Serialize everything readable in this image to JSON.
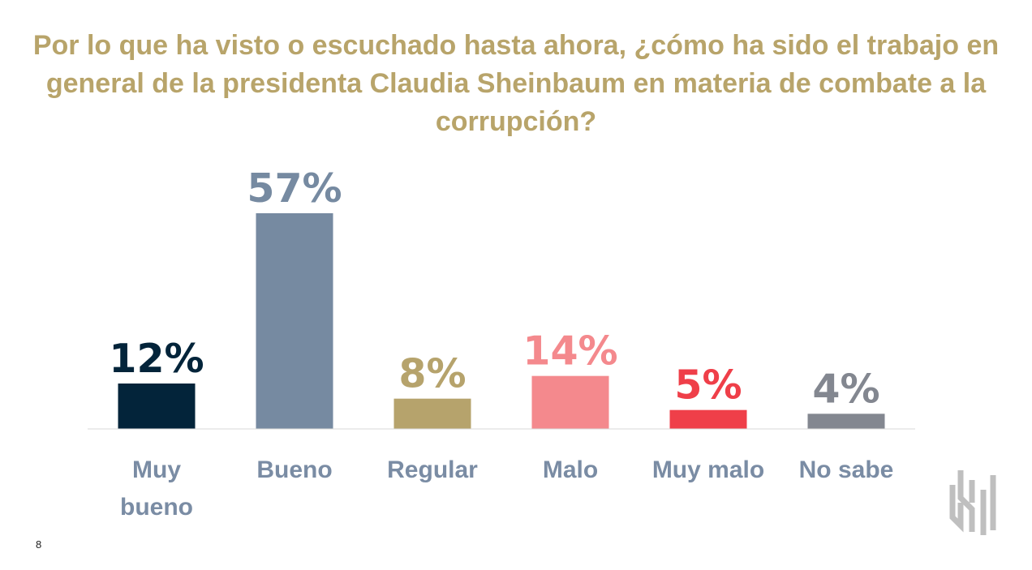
{
  "title": "Por lo que ha visto o escuchado hasta ahora, ¿cómo ha sido el trabajo en general de la presidenta Claudia Sheinbaum en materia de combate a la corrupción?",
  "page_number": "8",
  "chart_data": {
    "type": "bar",
    "categories": [
      "Muy bueno",
      "Bueno",
      "Regular",
      "Malo",
      "Muy malo",
      "No sabe"
    ],
    "values": [
      12,
      57,
      8,
      14,
      5,
      4
    ],
    "value_labels": [
      "12%",
      "57%",
      "8%",
      "14%",
      "5%",
      "4%"
    ],
    "bar_colors": [
      "#03243a",
      "#768aa1",
      "#b6a36c",
      "#f4898d",
      "#ef3f49",
      "#838790"
    ],
    "label_colors": [
      "#03243a",
      "#768aa1",
      "#b6a36c",
      "#f4898d",
      "#ef3f49",
      "#838790"
    ],
    "category_color": "#7a8ca4",
    "title": "Por lo que ha visto o escuchado hasta ahora, ¿cómo ha sido el trabajo en general de la presidenta Claudia Sheinbaum en materia de combate a la corrupción?",
    "xlabel": "",
    "ylabel": "",
    "grid": false,
    "legend": "none"
  },
  "colors": {
    "title": "#b8a46a",
    "axis": "#d9d9d9"
  },
  "logo_icon": "brand-logo-icon"
}
